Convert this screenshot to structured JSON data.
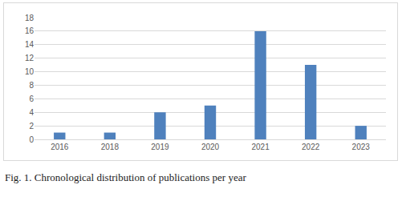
{
  "chart_data": {
    "type": "bar",
    "caption": "Fig. 1. Chronological distribution of publications per year",
    "categories": [
      "2016",
      "2018",
      "2019",
      "2020",
      "2021",
      "2022",
      "2023"
    ],
    "values": [
      1,
      1,
      4,
      5,
      16,
      11,
      2
    ],
    "color": "#4f81bd",
    "ylim": [
      0,
      18
    ],
    "yticks": [
      0,
      2,
      4,
      6,
      8,
      10,
      12,
      14,
      16,
      18
    ],
    "grid": true
  }
}
